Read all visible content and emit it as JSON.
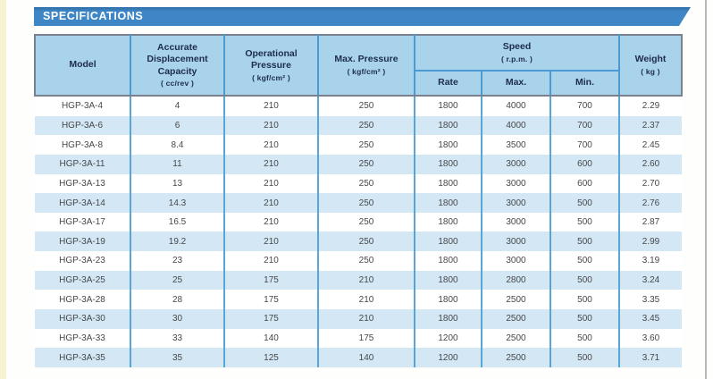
{
  "page": {
    "section_title": "SPECIFICATIONS"
  },
  "colors": {
    "banner_blue": "#3e86c5",
    "header_cell_bg": "#a9d3eb",
    "header_text_navy": "#1d2c4e",
    "row_alt_blue": "#d3e7f5",
    "divider_blue": "#4a9bd3",
    "header_outline_gray": "#78818d",
    "body_text": "#47484a",
    "left_strip_yellow": "#f7f3d0",
    "page_edge_gray": "#b9b9b3"
  },
  "table": {
    "columns": [
      {
        "id": "model",
        "label": "Model",
        "unit": ""
      },
      {
        "id": "displacement",
        "label": "Accurate Displacement Capacity",
        "unit": "( cc/rev )"
      },
      {
        "id": "operational_pressure",
        "label": "Operational Pressure",
        "unit": "( kgf/cm² )"
      },
      {
        "id": "max_pressure",
        "label": "Max. Pressure",
        "unit": "( kgf/cm² )"
      },
      {
        "id": "speed",
        "label": "Speed",
        "unit": "( r.p.m. )",
        "children": [
          {
            "id": "rate",
            "label": "Rate"
          },
          {
            "id": "max",
            "label": "Max."
          },
          {
            "id": "min",
            "label": "Min."
          }
        ]
      },
      {
        "id": "weight",
        "label": "Weight",
        "unit": "( kg )"
      }
    ],
    "rows": [
      {
        "model": "HGP-3A-4",
        "displacement": "4",
        "operational_pressure": "210",
        "max_pressure": "250",
        "rate": "1800",
        "max": "4000",
        "min": "700",
        "weight": "2.29"
      },
      {
        "model": "HGP-3A-6",
        "displacement": "6",
        "operational_pressure": "210",
        "max_pressure": "250",
        "rate": "1800",
        "max": "4000",
        "min": "700",
        "weight": "2.37"
      },
      {
        "model": "HGP-3A-8",
        "displacement": "8.4",
        "operational_pressure": "210",
        "max_pressure": "250",
        "rate": "1800",
        "max": "3500",
        "min": "700",
        "weight": "2.45"
      },
      {
        "model": "HGP-3A-11",
        "displacement": "11",
        "operational_pressure": "210",
        "max_pressure": "250",
        "rate": "1800",
        "max": "3000",
        "min": "600",
        "weight": "2.60"
      },
      {
        "model": "HGP-3A-13",
        "displacement": "13",
        "operational_pressure": "210",
        "max_pressure": "250",
        "rate": "1800",
        "max": "3000",
        "min": "600",
        "weight": "2.70"
      },
      {
        "model": "HGP-3A-14",
        "displacement": "14.3",
        "operational_pressure": "210",
        "max_pressure": "250",
        "rate": "1800",
        "max": "3000",
        "min": "500",
        "weight": "2.76"
      },
      {
        "model": "HGP-3A-17",
        "displacement": "16.5",
        "operational_pressure": "210",
        "max_pressure": "250",
        "rate": "1800",
        "max": "3000",
        "min": "500",
        "weight": "2.87"
      },
      {
        "model": "HGP-3A-19",
        "displacement": "19.2",
        "operational_pressure": "210",
        "max_pressure": "250",
        "rate": "1800",
        "max": "3000",
        "min": "500",
        "weight": "2.99"
      },
      {
        "model": "HGP-3A-23",
        "displacement": "23",
        "operational_pressure": "210",
        "max_pressure": "250",
        "rate": "1800",
        "max": "3000",
        "min": "500",
        "weight": "3.19"
      },
      {
        "model": "HGP-3A-25",
        "displacement": "25",
        "operational_pressure": "175",
        "max_pressure": "210",
        "rate": "1800",
        "max": "2800",
        "min": "500",
        "weight": "3.24"
      },
      {
        "model": "HGP-3A-28",
        "displacement": "28",
        "operational_pressure": "175",
        "max_pressure": "210",
        "rate": "1800",
        "max": "2500",
        "min": "500",
        "weight": "3.35"
      },
      {
        "model": "HGP-3A-30",
        "displacement": "30",
        "operational_pressure": "175",
        "max_pressure": "210",
        "rate": "1800",
        "max": "2500",
        "min": "500",
        "weight": "3.45"
      },
      {
        "model": "HGP-3A-33",
        "displacement": "33",
        "operational_pressure": "140",
        "max_pressure": "175",
        "rate": "1200",
        "max": "2500",
        "min": "500",
        "weight": "3.60"
      },
      {
        "model": "HGP-3A-35",
        "displacement": "35",
        "operational_pressure": "125",
        "max_pressure": "140",
        "rate": "1200",
        "max": "2500",
        "min": "500",
        "weight": "3.71"
      }
    ]
  }
}
